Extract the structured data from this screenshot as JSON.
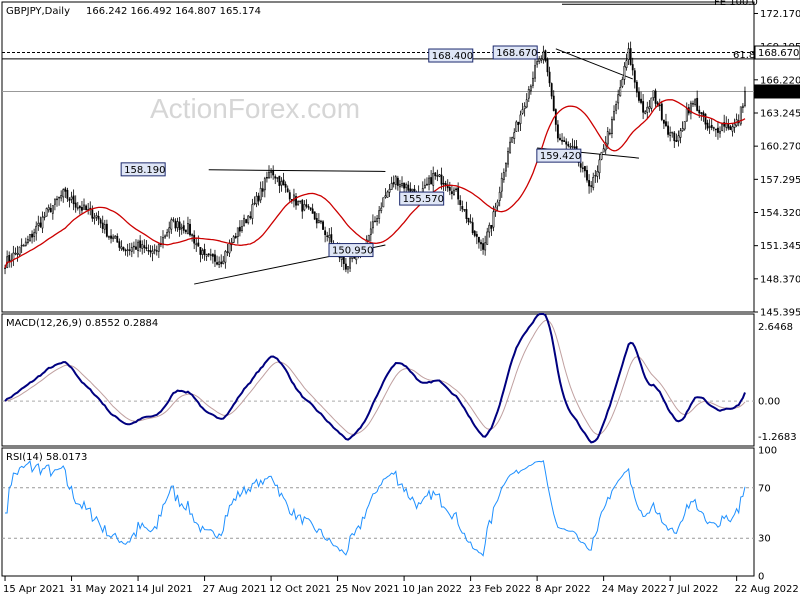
{
  "chart_data": [
    {
      "type": "candlestick",
      "title": "GBPJPY,Daily",
      "ohlc": "166.242 166.492 164.807 165.174",
      "watermark": "ActionForex.com",
      "ylim": [
        145.395,
        173.2
      ],
      "y_ticks": [
        "172.170",
        "169.195",
        "166.220",
        "163.245",
        "160.270",
        "157.295",
        "154.320",
        "151.345",
        "148.370",
        "145.395"
      ],
      "price_labels": [
        {
          "text": "168.670",
          "value": 168.67,
          "style": "highlight"
        },
        {
          "text": "165.174",
          "value": 165.174,
          "style": "current"
        }
      ],
      "top_label": "FE 100.0",
      "fib_label": "61.8",
      "colors": {
        "up": "#000000",
        "down": "#000000",
        "ma": "#cc0000",
        "label_bg": "#dfe6f6",
        "label_border": "#1d2a6e",
        "level_line": "#000000"
      },
      "annotations": [
        {
          "text": "168.400",
          "x": 226,
          "y": 168.4
        },
        {
          "text": "168.670",
          "x": 257,
          "y": 168.67
        },
        {
          "text": "158.190",
          "x": 78,
          "y": 158.19
        },
        {
          "text": "155.570",
          "x": 212,
          "y": 155.57
        },
        {
          "text": "150.950",
          "x": 178,
          "y": 150.95
        },
        {
          "text": "159.420",
          "x": 278,
          "y": 159.42
        }
      ],
      "trendlines": [
        {
          "from": [
            91,
            147.9
          ],
          "to": [
            183,
            151.4
          ]
        },
        {
          "from": [
            98,
            158.15
          ],
          "to": [
            183,
            158.0
          ]
        },
        {
          "from": [
            265,
            169.0
          ],
          "to": [
            302,
            166.3
          ]
        },
        {
          "from": [
            256,
            160.1
          ],
          "to": [
            305,
            159.2
          ]
        }
      ],
      "n_bars": 357
    },
    {
      "type": "line",
      "title": "MACD(12,26,9) 0.8552 0.2884",
      "y_ticks": [
        "2.6468",
        "0.00",
        "-1.2683"
      ],
      "ylim": [
        -1.6,
        3.1
      ],
      "series": [
        {
          "name": "MACD",
          "color": "#00007f",
          "width": 2
        },
        {
          "name": "Signal",
          "color": "#c0a0a0",
          "width": 1
        }
      ]
    },
    {
      "type": "line",
      "title": "RSI(14) 58.0173",
      "y_ticks": [
        "100",
        "70",
        "30",
        "0"
      ],
      "ylim": [
        0,
        100
      ],
      "levels": [
        70,
        30
      ],
      "series": [
        {
          "name": "RSI",
          "color": "#1e90ff",
          "width": 1
        }
      ]
    }
  ],
  "x_ticks": [
    "15 Apr 2021",
    "31 May 2021",
    "14 Jul 2021",
    "27 Aug 2021",
    "12 Oct 2021",
    "25 Nov 2021",
    "10 Jan 2022",
    "23 Feb 2022",
    "8 Apr 2022",
    "24 May 2022",
    "7 Jul 2022",
    "22 Aug 2022"
  ],
  "x_tick_bars": [
    0,
    32,
    64,
    96,
    128,
    160,
    192,
    224,
    256,
    288,
    320,
    352
  ],
  "price_path": [
    [
      0,
      149.8
    ],
    [
      10,
      151.5
    ],
    [
      20,
      154.3
    ],
    [
      28,
      156.0
    ],
    [
      36,
      154.8
    ],
    [
      44,
      154.0
    ],
    [
      50,
      152.3
    ],
    [
      58,
      151.0
    ],
    [
      64,
      151.3
    ],
    [
      72,
      150.6
    ],
    [
      80,
      153.4
    ],
    [
      88,
      152.9
    ],
    [
      96,
      150.2
    ],
    [
      104,
      150.1
    ],
    [
      112,
      152.6
    ],
    [
      118,
      154.3
    ],
    [
      124,
      156.5
    ],
    [
      128,
      158.2
    ],
    [
      134,
      156.6
    ],
    [
      140,
      155.3
    ],
    [
      146,
      154.4
    ],
    [
      152,
      153.2
    ],
    [
      158,
      151.3
    ],
    [
      164,
      149.5
    ],
    [
      170,
      150.4
    ],
    [
      176,
      152.6
    ],
    [
      182,
      155.5
    ],
    [
      188,
      157.3
    ],
    [
      194,
      156.5
    ],
    [
      200,
      155.8
    ],
    [
      206,
      157.6
    ],
    [
      212,
      157.1
    ],
    [
      218,
      155.8
    ],
    [
      222,
      154.0
    ],
    [
      226,
      152.1
    ],
    [
      230,
      151.4
    ],
    [
      234,
      153.2
    ],
    [
      238,
      156.4
    ],
    [
      242,
      160.0
    ],
    [
      246,
      162.0
    ],
    [
      250,
      164.3
    ],
    [
      254,
      166.6
    ],
    [
      256,
      167.6
    ],
    [
      259,
      168.4
    ],
    [
      262,
      165.8
    ],
    [
      264,
      163.6
    ],
    [
      266,
      161.0
    ],
    [
      270,
      160.3
    ],
    [
      274,
      159.8
    ],
    [
      278,
      157.9
    ],
    [
      282,
      156.8
    ],
    [
      285,
      157.8
    ],
    [
      288,
      160.3
    ],
    [
      292,
      162.3
    ],
    [
      295,
      164.7
    ],
    [
      298,
      167.1
    ],
    [
      300,
      168.67
    ],
    [
      304,
      165.2
    ],
    [
      308,
      163.0
    ],
    [
      312,
      164.9
    ],
    [
      316,
      163.1
    ],
    [
      320,
      161.3
    ],
    [
      324,
      160.8
    ],
    [
      328,
      163.5
    ],
    [
      332,
      164.2
    ],
    [
      336,
      162.6
    ],
    [
      338,
      161.8
    ],
    [
      342,
      161.7
    ],
    [
      346,
      162.3
    ],
    [
      350,
      161.9
    ],
    [
      353,
      162.6
    ],
    [
      356,
      165.1
    ]
  ]
}
